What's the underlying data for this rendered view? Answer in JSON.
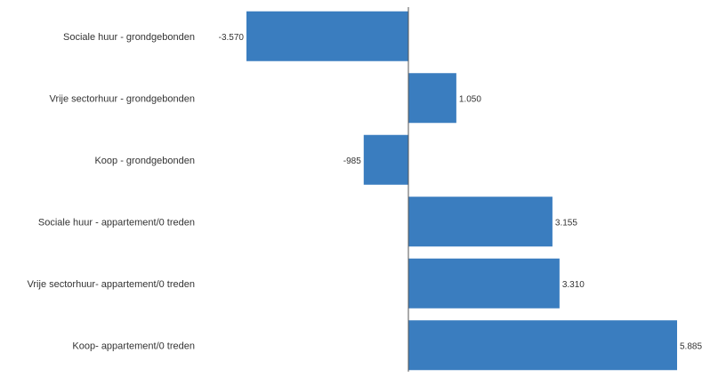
{
  "chart_data": {
    "type": "bar",
    "orientation": "horizontal",
    "categories": [
      "Sociale huur - grondgebonden",
      "Vrije sectorhuur - grondgebonden",
      "Koop - grondgebonden",
      "Sociale huur - appartement/0 treden",
      "Vrije sectorhuur- appartement/0 treden",
      "Koop- appartement/0 treden"
    ],
    "values": [
      -3570,
      1050,
      -985,
      3155,
      3310,
      5885
    ],
    "value_labels": [
      "-3.570",
      "1.050",
      "-985",
      "3.155",
      "3.310",
      "5.885"
    ],
    "xlim": [
      -3570,
      5885
    ],
    "bar_color": "#3a7dbf",
    "axis_color": "#555555",
    "grid": false
  }
}
